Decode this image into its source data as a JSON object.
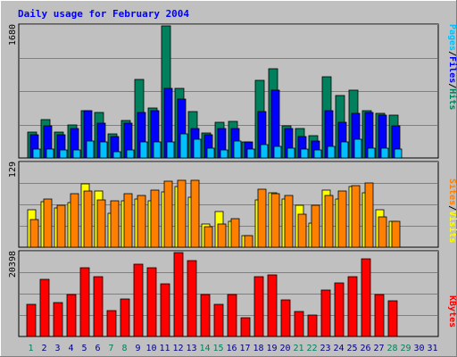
{
  "chart_data": {
    "type": "bar",
    "title": "Daily usage for February 2004",
    "colors": {
      "hits": "#00805c",
      "files": "#0000ff",
      "pages": "#00c0ff",
      "visits": "#ffff00",
      "sites": "#ff8000",
      "kbytes": "#ff0000",
      "weekday_label": "#000080",
      "weekend_label": "#00805c",
      "panel_bg": "#c0c0c0",
      "frame_bg": "#c0c0c0",
      "title": "#0000ff"
    },
    "days": [
      "1",
      "2",
      "3",
      "4",
      "5",
      "6",
      "7",
      "8",
      "9",
      "10",
      "11",
      "12",
      "13",
      "14",
      "15",
      "16",
      "17",
      "18",
      "19",
      "20",
      "21",
      "22",
      "23",
      "24",
      "25",
      "26",
      "27",
      "28",
      "29",
      "30",
      "31"
    ],
    "weekend_days": [
      "1",
      "7",
      "8",
      "14",
      "15",
      "21",
      "22",
      "28",
      "29"
    ],
    "top": {
      "max_label": "1680",
      "ymax": 1680,
      "legend": [
        {
          "key": "pages",
          "text": "Pages"
        },
        {
          "key": "sep",
          "text": "/"
        },
        {
          "key": "files",
          "text": "Files"
        },
        {
          "key": "sep",
          "text": "/"
        },
        {
          "key": "hits",
          "text": "Hits"
        }
      ],
      "series": [
        {
          "key": "hits",
          "values": [
            330,
            490,
            330,
            420,
            600,
            580,
            310,
            480,
            1000,
            630,
            1680,
            890,
            590,
            320,
            450,
            460,
            200,
            990,
            1140,
            410,
            370,
            280,
            1030,
            800,
            860,
            600,
            570,
            540,
            0,
            0,
            0
          ]
        },
        {
          "key": "files",
          "values": [
            300,
            410,
            300,
            380,
            600,
            440,
            270,
            440,
            580,
            600,
            880,
            750,
            380,
            300,
            380,
            380,
            200,
            590,
            860,
            380,
            270,
            210,
            600,
            450,
            570,
            580,
            540,
            410,
            0,
            0,
            0
          ]
        },
        {
          "key": "pages",
          "values": [
            110,
            110,
            100,
            100,
            220,
            200,
            80,
            100,
            200,
            200,
            200,
            310,
            240,
            120,
            100,
            210,
            110,
            170,
            150,
            120,
            110,
            100,
            150,
            200,
            240,
            130,
            120,
            110,
            0,
            0,
            0
          ]
        }
      ]
    },
    "middle": {
      "max_label": "129",
      "ymax": 129,
      "legend": [
        {
          "key": "sites",
          "text": "Sites"
        },
        {
          "key": "sep",
          "text": "/"
        },
        {
          "key": "visits",
          "text": "Visits"
        }
      ],
      "series": [
        {
          "key": "visits",
          "values": [
            58,
            70,
            60,
            69,
            97,
            86,
            52,
            72,
            74,
            71,
            85,
            94,
            77,
            35,
            55,
            40,
            18,
            73,
            84,
            74,
            64,
            37,
            88,
            74,
            94,
            84,
            58,
            40,
            0,
            0,
            0
          ]
        },
        {
          "key": "sites",
          "values": [
            43,
            74,
            64,
            82,
            87,
            73,
            72,
            82,
            80,
            88,
            101,
            103,
            103,
            32,
            36,
            44,
            18,
            89,
            82,
            79,
            51,
            65,
            80,
            86,
            95,
            99,
            46,
            40,
            0,
            0,
            0
          ]
        }
      ]
    },
    "bottom": {
      "max_label": "20398",
      "ymax": 20398,
      "legend": [
        {
          "key": "kbytes",
          "text": "KBytes"
        }
      ],
      "series": [
        {
          "key": "kbytes",
          "values": [
            7800,
            13800,
            8300,
            10200,
            16700,
            14600,
            6300,
            9100,
            17600,
            16700,
            12900,
            20398,
            18500,
            10300,
            7900,
            10200,
            4600,
            14600,
            15000,
            9000,
            6100,
            5200,
            11200,
            13000,
            14500,
            18800,
            10300,
            8600,
            0,
            0,
            0
          ]
        }
      ]
    }
  }
}
